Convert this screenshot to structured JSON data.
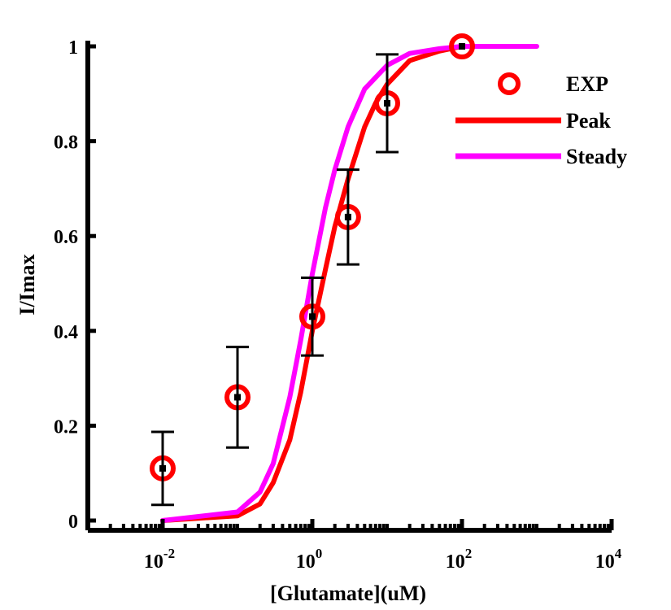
{
  "chart_data": {
    "type": "line",
    "xscale": "log",
    "xlim": [
      0.001,
      10000
    ],
    "ylim": [
      -0.02,
      1.0
    ],
    "xlabel": "[Glutamate](uM)",
    "ylabel": "I/Imax",
    "xticks": [
      {
        "value": 0.01,
        "base": "10",
        "exp": "-2"
      },
      {
        "value": 1,
        "base": "10",
        "exp": "0"
      },
      {
        "value": 100,
        "base": "10",
        "exp": "2"
      },
      {
        "value": 10000,
        "base": "10",
        "exp": "4"
      }
    ],
    "yticks": [
      {
        "value": 0,
        "label": "0"
      },
      {
        "value": 0.2,
        "label": "0.2"
      },
      {
        "value": 0.4,
        "label": "0.4"
      },
      {
        "value": 0.6,
        "label": "0.6"
      },
      {
        "value": 0.8,
        "label": "0.8"
      },
      {
        "value": 1.0,
        "label": "1"
      }
    ],
    "legend_position": "top-right",
    "series": [
      {
        "name": "EXP",
        "kind": "marker",
        "color": "#ff0000",
        "x": [
          0.01,
          0.1,
          1,
          3,
          10,
          100
        ],
        "y": [
          0.11,
          0.26,
          0.43,
          0.64,
          0.88,
          1.0
        ],
        "error": [
          0.077,
          0.106,
          0.082,
          0.1,
          0.103,
          0.0
        ]
      },
      {
        "name": "Peak",
        "kind": "line",
        "color": "#ff0000",
        "x": [
          0.01,
          0.1,
          0.2,
          0.3,
          0.5,
          0.7,
          1,
          1.5,
          2,
          3,
          5,
          7,
          10,
          20,
          50,
          100
        ],
        "y": [
          0.0,
          0.01,
          0.035,
          0.08,
          0.17,
          0.27,
          0.4,
          0.53,
          0.62,
          0.72,
          0.83,
          0.88,
          0.92,
          0.97,
          0.99,
          1.0
        ]
      },
      {
        "name": "Steady",
        "kind": "line",
        "color": "#ff00ff",
        "x": [
          0.01,
          0.1,
          0.2,
          0.3,
          0.5,
          0.7,
          1,
          1.5,
          2,
          3,
          5,
          10,
          20,
          50,
          100,
          1000
        ],
        "y": [
          0.0,
          0.018,
          0.06,
          0.12,
          0.26,
          0.38,
          0.52,
          0.66,
          0.74,
          0.83,
          0.91,
          0.96,
          0.985,
          0.995,
          1.0,
          1.0
        ]
      }
    ]
  }
}
